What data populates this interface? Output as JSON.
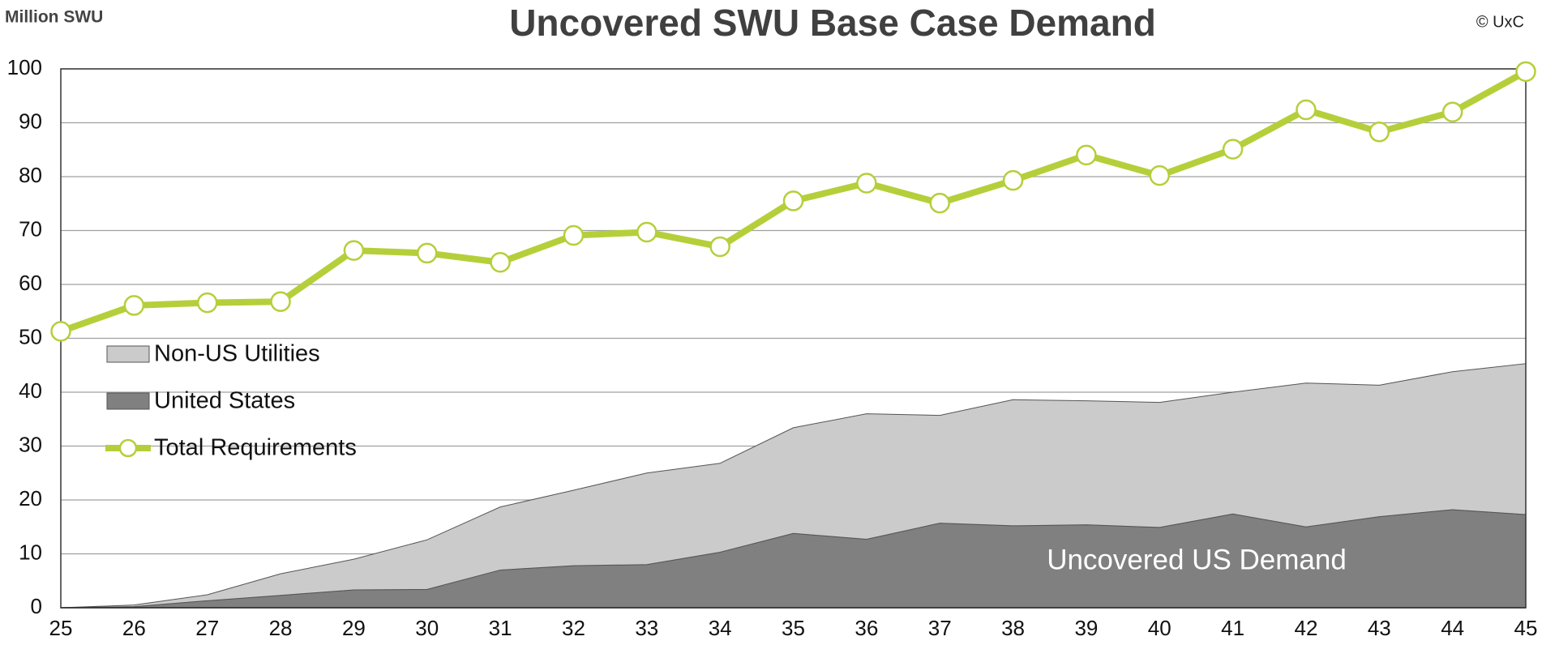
{
  "chart_data": {
    "type": "area",
    "title": "Uncovered SWU Base Case Demand",
    "y_label": "Million SWU",
    "credit": "© UxC",
    "annotation": "Uncovered US Demand",
    "categories": [
      "25",
      "26",
      "27",
      "28",
      "29",
      "30",
      "31",
      "32",
      "33",
      "34",
      "35",
      "36",
      "37",
      "38",
      "39",
      "40",
      "41",
      "42",
      "43",
      "44",
      "45"
    ],
    "series": [
      {
        "name": "United States",
        "type": "area",
        "stacked": true,
        "color": "#808080",
        "values": [
          0,
          0.2,
          1.3,
          2.3,
          3.3,
          3.4,
          7.0,
          7.8,
          8.0,
          10.3,
          13.8,
          12.7,
          15.7,
          15.2,
          15.4,
          14.9,
          17.4,
          15.0,
          16.9,
          18.2,
          17.3
        ]
      },
      {
        "name": "Non-US Utilities",
        "type": "area",
        "stacked": true,
        "color": "#cbcbcb",
        "values": [
          0,
          0.3,
          1.1,
          4.0,
          5.7,
          9.2,
          11.7,
          14.0,
          17.0,
          16.5,
          19.6,
          23.3,
          20.0,
          23.4,
          23.0,
          23.2,
          22.6,
          26.7,
          24.4,
          25.6,
          28.0
        ]
      },
      {
        "name": "Total Requirements",
        "type": "line",
        "color": "#b5cf3a",
        "values": [
          51.3,
          56.1,
          56.6,
          56.8,
          66.3,
          65.8,
          64.1,
          69.1,
          69.7,
          67.0,
          75.5,
          78.8,
          75.1,
          79.3,
          84.0,
          80.2,
          85.1,
          92.4,
          88.3,
          92.0,
          99.5
        ]
      }
    ],
    "legend_order": [
      1,
      0,
      2
    ],
    "ylim": [
      0,
      100
    ],
    "yticks": [
      0,
      10,
      20,
      30,
      40,
      50,
      60,
      70,
      80,
      90,
      100
    ],
    "grid": true
  }
}
